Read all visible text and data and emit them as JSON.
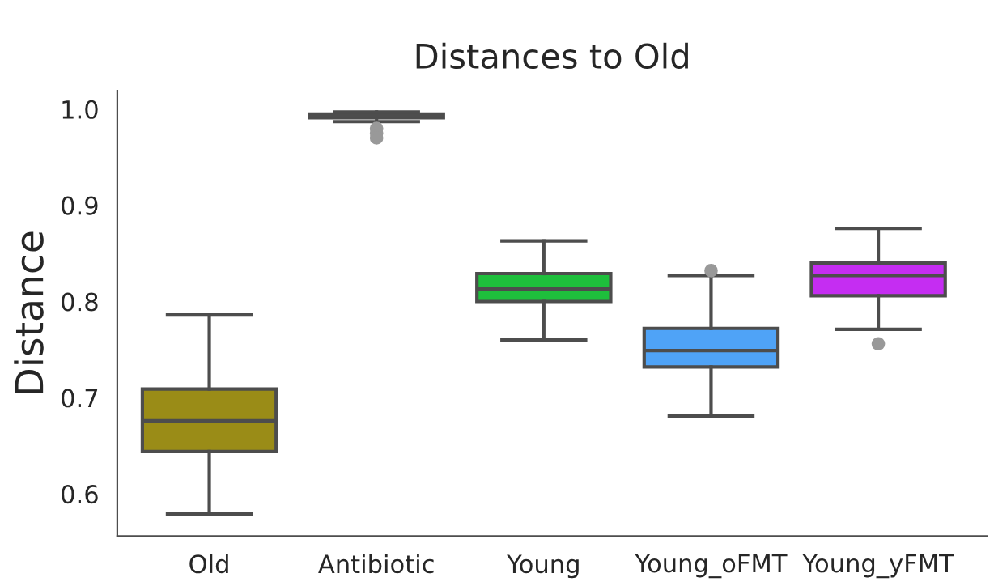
{
  "chart_data": {
    "type": "box",
    "title": "Distances to Old",
    "ylabel": "Distance",
    "categories": [
      "Old",
      "Antibiotic",
      "Young",
      "Young_oFMT",
      "Young_yFMT"
    ],
    "colors": [
      "#9a8c17",
      "#6e6e6e",
      "#1ebf3c",
      "#4fa3f7",
      "#c52df2"
    ],
    "boxes": [
      {
        "low": 0.579,
        "q1": 0.644,
        "median": 0.676,
        "q3": 0.709,
        "high": 0.786
      },
      {
        "low": 0.987,
        "q1": 0.991,
        "median": 0.993,
        "q3": 0.995,
        "high": 0.997,
        "outliers": [
          0.98,
          0.975,
          0.97
        ]
      },
      {
        "low": 0.76,
        "q1": 0.8,
        "median": 0.813,
        "q3": 0.829,
        "high": 0.863
      },
      {
        "low": 0.681,
        "q1": 0.732,
        "median": 0.749,
        "q3": 0.772,
        "high": 0.827,
        "outliers": [
          0.832
        ]
      },
      {
        "low": 0.771,
        "q1": 0.806,
        "median": 0.827,
        "q3": 0.84,
        "high": 0.876,
        "outliers": [
          0.756
        ]
      }
    ],
    "ylim": [
      0.556,
      1.019
    ],
    "yticks": [
      0.6,
      0.7,
      0.8,
      0.9,
      {
        "value": 1.0,
        "label": "1.0"
      }
    ],
    "grid": false
  }
}
